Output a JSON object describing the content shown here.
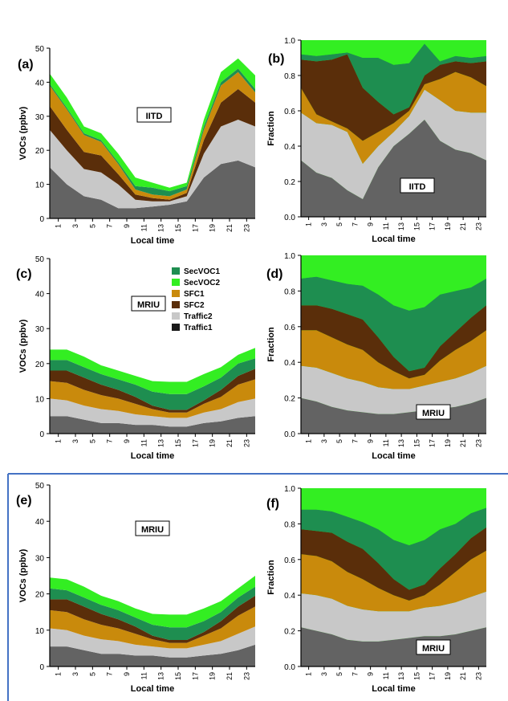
{
  "figure": {
    "series_order": [
      "Traffic1",
      "Traffic2",
      "SFC2",
      "SFC1",
      "SecVOC2",
      "SecVOC1"
    ],
    "colors": {
      "Traffic1": "#1a1a1a",
      "Traffic2": "#c8c8c8",
      "SFC2": "#5a2e0a",
      "SFC1": "#c98a0c",
      "SecVOC2": "#33ee22",
      "SecVOC1": "#1e8e50",
      "base": "#636363"
    },
    "legend_order": [
      "SecVOC1",
      "SecVOC2",
      "SFC1",
      "SFC2",
      "Traffic2",
      "Traffic1"
    ]
  },
  "chart_data": [
    {
      "panel": "(a)",
      "type": "area",
      "mode": "absolute",
      "site": "IITD",
      "xlabel": "Local time",
      "ylabel": "VOCs (ppbv)",
      "xticks": [
        "1",
        "3",
        "5",
        "7",
        "9",
        "11",
        "13",
        "15",
        "17",
        "19",
        "21",
        "23"
      ],
      "yticks": [
        "0",
        "10",
        "20",
        "30",
        "40",
        "50"
      ],
      "ylim": [
        0,
        50
      ],
      "x": [
        0,
        2,
        4,
        6,
        8,
        10,
        12,
        14,
        16,
        18,
        20,
        22,
        24
      ],
      "series": [
        {
          "name": "Traffic1",
          "values": [
            15,
            10,
            6.5,
            5.5,
            3,
            3,
            3.5,
            4,
            5,
            12,
            16,
            17,
            15
          ]
        },
        {
          "name": "Traffic2",
          "values": [
            11,
            10,
            8,
            8,
            7,
            2.5,
            1.5,
            1,
            1.5,
            7,
            11,
            12,
            12
          ]
        },
        {
          "name": "SFC2",
          "values": [
            7,
            6,
            5,
            5,
            3,
            1.5,
            1,
            0.5,
            1,
            4,
            7,
            9,
            7
          ]
        },
        {
          "name": "SFC1",
          "values": [
            6,
            6,
            5,
            4,
            3,
            1.5,
            1,
            1,
            1,
            3,
            5,
            5,
            3
          ]
        },
        {
          "name": "SecVOC1",
          "values": [
            0.5,
            0.5,
            0.5,
            0.5,
            0.5,
            1,
            2,
            1.5,
            1,
            1,
            1,
            1,
            1
          ]
        },
        {
          "name": "SecVOC2",
          "values": [
            3,
            3,
            2,
            2,
            2.5,
            2.5,
            1.5,
            1,
            1,
            2,
            3,
            3,
            4
          ]
        }
      ]
    },
    {
      "panel": "(b)",
      "type": "area",
      "mode": "fraction",
      "site": "IITD",
      "xlabel": "Local time",
      "ylabel": "Fraction",
      "xticks": [
        "1",
        "3",
        "5",
        "7",
        "9",
        "11",
        "13",
        "15",
        "17",
        "19",
        "21",
        "23"
      ],
      "yticks": [
        "0.0",
        "0.2",
        "0.4",
        "0.6",
        "0.8",
        "1.0"
      ],
      "ylim": [
        0,
        1
      ],
      "x": [
        0,
        2,
        4,
        6,
        8,
        10,
        12,
        14,
        16,
        18,
        20,
        22,
        24
      ],
      "series": [
        {
          "name": "Traffic1",
          "values": [
            0.32,
            0.25,
            0.22,
            0.15,
            0.1,
            0.28,
            0.4,
            0.47,
            0.55,
            0.43,
            0.38,
            0.36,
            0.32
          ]
        },
        {
          "name": "Traffic2",
          "values": [
            0.27,
            0.28,
            0.3,
            0.33,
            0.2,
            0.12,
            0.08,
            0.1,
            0.17,
            0.23,
            0.22,
            0.23,
            0.27
          ]
        },
        {
          "name": "SFC1",
          "values": [
            0.14,
            0.05,
            0.02,
            0.02,
            0.13,
            0.08,
            0.05,
            0.03,
            0.03,
            0.12,
            0.22,
            0.2,
            0.15
          ]
        },
        {
          "name": "SFC2",
          "values": [
            0.16,
            0.3,
            0.35,
            0.42,
            0.3,
            0.17,
            0.05,
            0.02,
            0.05,
            0.08,
            0.06,
            0.08,
            0.14
          ]
        },
        {
          "name": "SecVOC1",
          "values": [
            0.03,
            0.03,
            0.03,
            0.01,
            0.17,
            0.25,
            0.28,
            0.25,
            0.18,
            0.02,
            0.03,
            0.03,
            0.03
          ]
        },
        {
          "name": "SecVOC2",
          "values": [
            0.08,
            0.09,
            0.08,
            0.07,
            0.1,
            0.1,
            0.14,
            0.13,
            0.02,
            0.12,
            0.09,
            0.1,
            0.09
          ]
        }
      ]
    },
    {
      "panel": "(c)",
      "type": "area",
      "mode": "absolute",
      "site": "MRIU",
      "xlabel": "Local time",
      "ylabel": "VOCs (ppbv)",
      "xticks": [
        "1",
        "3",
        "5",
        "7",
        "9",
        "11",
        "13",
        "15",
        "17",
        "19",
        "21",
        "23"
      ],
      "yticks": [
        "0",
        "10",
        "20",
        "30",
        "40",
        "50"
      ],
      "ylim": [
        0,
        50
      ],
      "x": [
        0,
        2,
        4,
        6,
        8,
        10,
        12,
        14,
        16,
        18,
        20,
        22,
        24
      ],
      "series": [
        {
          "name": "Traffic1",
          "values": [
            5,
            5,
            4,
            3,
            3,
            2.5,
            2.5,
            2,
            2,
            3,
            3.5,
            4.5,
            5
          ]
        },
        {
          "name": "Traffic2",
          "values": [
            5,
            4.5,
            4,
            4,
            3.5,
            3,
            2.5,
            2.5,
            2.5,
            3,
            3.5,
            4.5,
            5
          ]
        },
        {
          "name": "SFC1",
          "values": [
            5,
            5,
            4.5,
            4,
            3.5,
            3,
            2,
            1.5,
            1.5,
            2.5,
            3.5,
            5,
            5.5
          ]
        },
        {
          "name": "SFC2",
          "values": [
            3,
            3.5,
            3.5,
            3,
            2.5,
            2,
            1,
            0.8,
            0.8,
            1,
            2,
            2.5,
            3
          ]
        },
        {
          "name": "SecVOC1",
          "values": [
            3,
            3,
            3,
            3,
            3,
            3.5,
            4,
            4.5,
            4.5,
            4,
            3.5,
            3.5,
            3
          ]
        },
        {
          "name": "SecVOC2",
          "values": [
            3,
            3,
            3,
            2.5,
            2.5,
            2.5,
            3,
            3.5,
            3.5,
            3.5,
            3,
            2.5,
            3
          ]
        }
      ]
    },
    {
      "panel": "(d)",
      "type": "area",
      "mode": "fraction",
      "site": "MRIU",
      "xlabel": "Local time",
      "ylabel": "Fraction",
      "xticks": [
        "1",
        "3",
        "5",
        "7",
        "9",
        "11",
        "13",
        "15",
        "17",
        "19",
        "21",
        "23"
      ],
      "yticks": [
        "0.0",
        "0.2",
        "0.4",
        "0.6",
        "0.8",
        "1.0"
      ],
      "ylim": [
        0,
        1
      ],
      "x": [
        0,
        2,
        4,
        6,
        8,
        10,
        12,
        14,
        16,
        18,
        20,
        22,
        24
      ],
      "series": [
        {
          "name": "Traffic1",
          "values": [
            0.2,
            0.18,
            0.15,
            0.13,
            0.12,
            0.11,
            0.11,
            0.12,
            0.13,
            0.14,
            0.15,
            0.17,
            0.2
          ]
        },
        {
          "name": "Traffic2",
          "values": [
            0.18,
            0.19,
            0.19,
            0.18,
            0.17,
            0.15,
            0.14,
            0.13,
            0.14,
            0.15,
            0.16,
            0.17,
            0.18
          ]
        },
        {
          "name": "SFC1",
          "values": [
            0.2,
            0.21,
            0.2,
            0.19,
            0.18,
            0.14,
            0.1,
            0.06,
            0.06,
            0.12,
            0.16,
            0.18,
            0.2
          ]
        },
        {
          "name": "SFC2",
          "values": [
            0.14,
            0.14,
            0.16,
            0.17,
            0.17,
            0.14,
            0.08,
            0.04,
            0.04,
            0.08,
            0.1,
            0.13,
            0.14
          ]
        },
        {
          "name": "SecVOC1",
          "values": [
            0.15,
            0.16,
            0.16,
            0.17,
            0.19,
            0.24,
            0.29,
            0.34,
            0.34,
            0.29,
            0.23,
            0.17,
            0.15
          ]
        },
        {
          "name": "SecVOC2",
          "values": [
            0.13,
            0.12,
            0.14,
            0.16,
            0.17,
            0.22,
            0.28,
            0.31,
            0.29,
            0.22,
            0.2,
            0.18,
            0.13
          ]
        }
      ]
    },
    {
      "panel": "(e)",
      "type": "area",
      "mode": "absolute",
      "site": "MRIU",
      "xlabel": "Local time",
      "ylabel": "VOCs (ppbv)",
      "xticks": [
        "1",
        "3",
        "5",
        "7",
        "9",
        "11",
        "13",
        "15",
        "17",
        "19",
        "21",
        "23"
      ],
      "yticks": [
        "0",
        "10",
        "20",
        "30",
        "40",
        "50"
      ],
      "ylim": [
        0,
        50
      ],
      "x": [
        0,
        2,
        4,
        6,
        8,
        10,
        12,
        14,
        16,
        18,
        20,
        22,
        24
      ],
      "series": [
        {
          "name": "Traffic1",
          "values": [
            5.5,
            5.5,
            4.5,
            3.5,
            3.5,
            3,
            3,
            2.5,
            2.5,
            3,
            3.5,
            4.5,
            6
          ]
        },
        {
          "name": "Traffic2",
          "values": [
            5,
            4.5,
            4,
            4,
            3.5,
            3,
            2.5,
            2.5,
            2.5,
            3,
            3.5,
            4.5,
            5
          ]
        },
        {
          "name": "SFC1",
          "values": [
            5,
            5,
            4.5,
            4,
            3.5,
            3,
            2,
            1.5,
            1.5,
            2.5,
            3.5,
            5,
            5.5
          ]
        },
        {
          "name": "SFC2",
          "values": [
            3,
            3.5,
            3.5,
            3,
            2.5,
            2,
            1,
            0.8,
            0.8,
            1,
            2,
            2.5,
            3
          ]
        },
        {
          "name": "SecVOC1",
          "values": [
            3,
            2.5,
            2.5,
            2.5,
            2.5,
            2.5,
            3,
            3.5,
            3.5,
            3,
            2.5,
            2.5,
            2.5
          ]
        },
        {
          "name": "SecVOC2",
          "values": [
            3,
            3,
            3,
            2.5,
            2.5,
            2.5,
            3,
            3.5,
            3.5,
            3.5,
            3,
            2.5,
            3
          ]
        }
      ]
    },
    {
      "panel": "(f)",
      "type": "area",
      "mode": "fraction",
      "site": "MRIU",
      "xlabel": "Local time",
      "ylabel": "Fraction",
      "xticks": [
        "1",
        "3",
        "5",
        "7",
        "9",
        "11",
        "13",
        "15",
        "17",
        "19",
        "21",
        "23"
      ],
      "yticks": [
        "0.0",
        "0.2",
        "0.4",
        "0.6",
        "0.8",
        "1.0"
      ],
      "ylim": [
        0,
        1
      ],
      "x": [
        0,
        2,
        4,
        6,
        8,
        10,
        12,
        14,
        16,
        18,
        20,
        22,
        24
      ],
      "series": [
        {
          "name": "Traffic1",
          "values": [
            0.22,
            0.2,
            0.18,
            0.15,
            0.14,
            0.14,
            0.15,
            0.16,
            0.17,
            0.17,
            0.18,
            0.2,
            0.22
          ]
        },
        {
          "name": "Traffic2",
          "values": [
            0.19,
            0.2,
            0.2,
            0.19,
            0.18,
            0.17,
            0.16,
            0.15,
            0.16,
            0.17,
            0.18,
            0.19,
            0.2
          ]
        },
        {
          "name": "SFC1",
          "values": [
            0.22,
            0.22,
            0.21,
            0.19,
            0.17,
            0.13,
            0.09,
            0.06,
            0.07,
            0.12,
            0.17,
            0.21,
            0.23
          ]
        },
        {
          "name": "SFC2",
          "values": [
            0.14,
            0.14,
            0.16,
            0.17,
            0.17,
            0.14,
            0.09,
            0.06,
            0.06,
            0.09,
            0.1,
            0.12,
            0.13
          ]
        },
        {
          "name": "SecVOC1",
          "values": [
            0.11,
            0.12,
            0.12,
            0.14,
            0.15,
            0.19,
            0.22,
            0.25,
            0.25,
            0.22,
            0.17,
            0.14,
            0.11
          ]
        },
        {
          "name": "SecVOC2",
          "values": [
            0.12,
            0.12,
            0.13,
            0.16,
            0.19,
            0.23,
            0.29,
            0.32,
            0.29,
            0.23,
            0.2,
            0.14,
            0.11
          ]
        }
      ]
    }
  ]
}
